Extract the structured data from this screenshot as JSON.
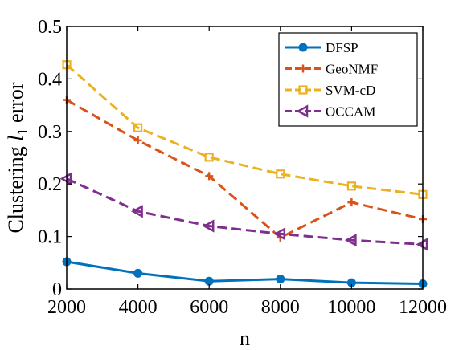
{
  "chart_data": {
    "type": "line",
    "title": "",
    "xlabel": "n",
    "ylabel_prefix": "Clustering ",
    "ylabel_var": "l",
    "ylabel_sub": "1",
    "ylabel_suffix": " error",
    "x": [
      2000,
      4000,
      6000,
      8000,
      10000,
      12000
    ],
    "xlim": [
      2000,
      12000
    ],
    "ylim": [
      0,
      0.5
    ],
    "xticks": [
      "2000",
      "4000",
      "6000",
      "8000",
      "10000",
      "12000"
    ],
    "yticks": [
      "0",
      "0.1",
      "0.2",
      "0.3",
      "0.4",
      "0.5"
    ],
    "grid": false,
    "legend_position": "top-right",
    "series": [
      {
        "name": "DFSP",
        "values": [
          0.052,
          0.03,
          0.015,
          0.019,
          0.012,
          0.01
        ],
        "color": "#0072BD",
        "dash": "solid",
        "marker": "circle"
      },
      {
        "name": "GeoNMF",
        "values": [
          0.36,
          0.283,
          0.215,
          0.098,
          0.165,
          0.133
        ],
        "color": "#D95319",
        "dash": "dashed",
        "marker": "plus"
      },
      {
        "name": "SVM-cD",
        "values": [
          0.427,
          0.307,
          0.251,
          0.219,
          0.196,
          0.18
        ],
        "color": "#EDB120",
        "dash": "dashed",
        "marker": "square"
      },
      {
        "name": "OCCAM",
        "values": [
          0.21,
          0.148,
          0.12,
          0.105,
          0.093,
          0.085
        ],
        "color": "#7E2F8E",
        "dash": "dashed",
        "marker": "triangle-left"
      }
    ]
  }
}
